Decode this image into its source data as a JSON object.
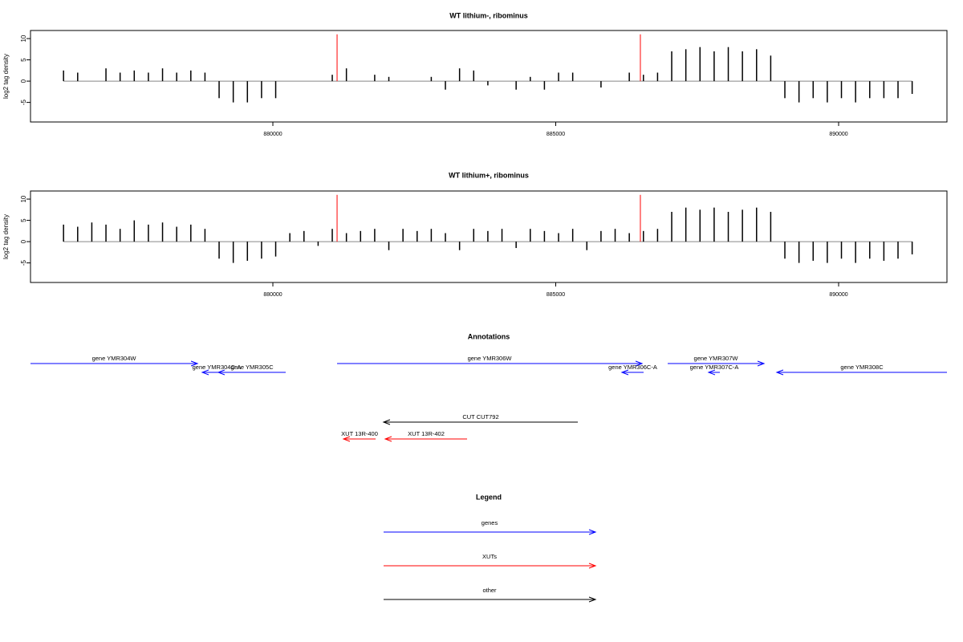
{
  "chart_data": [
    {
      "type": "bar",
      "title": "WT lithium-, ribominus",
      "ylabel": "log2 tag density",
      "color": "#000000",
      "x": [
        876300,
        876550,
        876800,
        877050,
        877300,
        877550,
        877800,
        878050,
        878300,
        878550,
        878800,
        879050,
        879300,
        879550,
        879800,
        880050,
        880300,
        880550,
        880800,
        881050,
        881300,
        881550,
        881800,
        882050,
        882300,
        882550,
        882800,
        883050,
        883300,
        883550,
        883800,
        884050,
        884300,
        884550,
        884800,
        885050,
        885300,
        885550,
        885800,
        886050,
        886300,
        886550,
        886800,
        887050,
        887300,
        887550,
        887800,
        888050,
        888300,
        888550,
        888800,
        889050,
        889300,
        889550,
        889800,
        890050,
        890300,
        890550,
        890800,
        891050,
        891300
      ],
      "values": [
        2.5,
        2,
        0,
        3,
        2,
        2.5,
        2,
        3,
        2,
        2.5,
        2,
        -4,
        -5,
        -5,
        -4,
        -4,
        0,
        0,
        0,
        1.5,
        3,
        0,
        1.5,
        1,
        0,
        0,
        1,
        -2,
        3,
        2.5,
        -1,
        0,
        -2,
        1,
        -2,
        2,
        2,
        0,
        -1.5,
        0,
        2,
        1.5,
        2,
        7,
        7.5,
        8,
        7,
        8,
        7,
        7.5,
        6,
        -4,
        -5,
        -4,
        -5,
        -4,
        -5,
        -4,
        -4,
        -4,
        -3
      ],
      "markers": {
        "color": "#ff0000",
        "x": [
          881135,
          886496
        ],
        "values": [
          11,
          11
        ]
      },
      "xlim": [
        875716,
        891915
      ],
      "xticks": [
        880000,
        885000,
        890000
      ],
      "ylim": [
        -9.6,
        11.9
      ],
      "yticks": [
        -5,
        0,
        5,
        10
      ]
    },
    {
      "type": "bar",
      "title": "WT lithium+, ribominus",
      "ylabel": "log2 tag density",
      "color": "#000000",
      "x": [
        876300,
        876550,
        876800,
        877050,
        877300,
        877550,
        877800,
        878050,
        878300,
        878550,
        878800,
        879050,
        879300,
        879550,
        879800,
        880050,
        880300,
        880550,
        880800,
        881050,
        881300,
        881550,
        881800,
        882050,
        882300,
        882550,
        882800,
        883050,
        883300,
        883550,
        883800,
        884050,
        884300,
        884550,
        884800,
        885050,
        885300,
        885550,
        885800,
        886050,
        886300,
        886550,
        886800,
        887050,
        887300,
        887550,
        887800,
        888050,
        888300,
        888550,
        888800,
        889050,
        889300,
        889550,
        889800,
        890050,
        890300,
        890550,
        890800,
        891050,
        891300
      ],
      "values": [
        4,
        3.5,
        4.5,
        4,
        3,
        5,
        4,
        4.5,
        3.5,
        4,
        3,
        -4,
        -5,
        -4.5,
        -4,
        -3.5,
        2,
        2.5,
        -1,
        3,
        2,
        2.5,
        3,
        -2,
        3,
        2.5,
        3,
        2,
        -2,
        3,
        2.5,
        3,
        -1.5,
        3,
        2.5,
        2,
        3,
        -2,
        2.5,
        3,
        2,
        2.5,
        3,
        7,
        8,
        7.5,
        8,
        7,
        7.5,
        8,
        7,
        -4,
        -5,
        -4.5,
        -5,
        -4,
        -5,
        -4,
        -4.5,
        -4,
        -3
      ],
      "markers": {
        "color": "#ff0000",
        "x": [
          881135,
          886496
        ],
        "values": [
          11,
          11
        ]
      },
      "xlim": [
        875716,
        891915
      ],
      "xticks": [
        880000,
        885000,
        890000
      ],
      "ylim": [
        -9.6,
        11.9
      ],
      "yticks": [
        -5,
        0,
        5,
        10
      ]
    }
  ],
  "annotations": {
    "title": "Annotations",
    "genes": [
      {
        "label": "gene YMR304W",
        "start": 875716,
        "end": 878667,
        "strand": "+"
      },
      {
        "label": "gene YMR304C-A",
        "start": 878752,
        "end": 879262,
        "strand": "-"
      },
      {
        "label": "gene YMR305C",
        "start": 879035,
        "end": 880227,
        "strand": "-"
      },
      {
        "label": "gene YMR306W",
        "start": 881135,
        "end": 886525,
        "strand": "+"
      },
      {
        "label": "gene YMR306C-A",
        "start": 886170,
        "end": 886553,
        "strand": "-"
      },
      {
        "label": "gene YMR307W",
        "start": 886979,
        "end": 888681,
        "strand": "+"
      },
      {
        "label": "gene YMR307C-A",
        "start": 887702,
        "end": 887901,
        "strand": "-"
      },
      {
        "label": "gene YMR308C",
        "start": 888908,
        "end": 891915,
        "strand": "-"
      }
    ],
    "other": [
      {
        "label": "CUT CUT792",
        "start": 881957,
        "end": 885390,
        "strand": "-"
      }
    ],
    "xuts": [
      {
        "label": "XUT 13R-400",
        "start": 881248,
        "end": 881816,
        "strand": "-"
      },
      {
        "label": "XUT 13R-402",
        "start": 881986,
        "end": 883433,
        "strand": "-"
      }
    ]
  },
  "legend": {
    "title": "Legend",
    "items": [
      {
        "label": "genes",
        "color": "#0000ff"
      },
      {
        "label": "XUTs",
        "color": "#ff0000"
      },
      {
        "label": "other",
        "color": "#000000"
      }
    ]
  }
}
